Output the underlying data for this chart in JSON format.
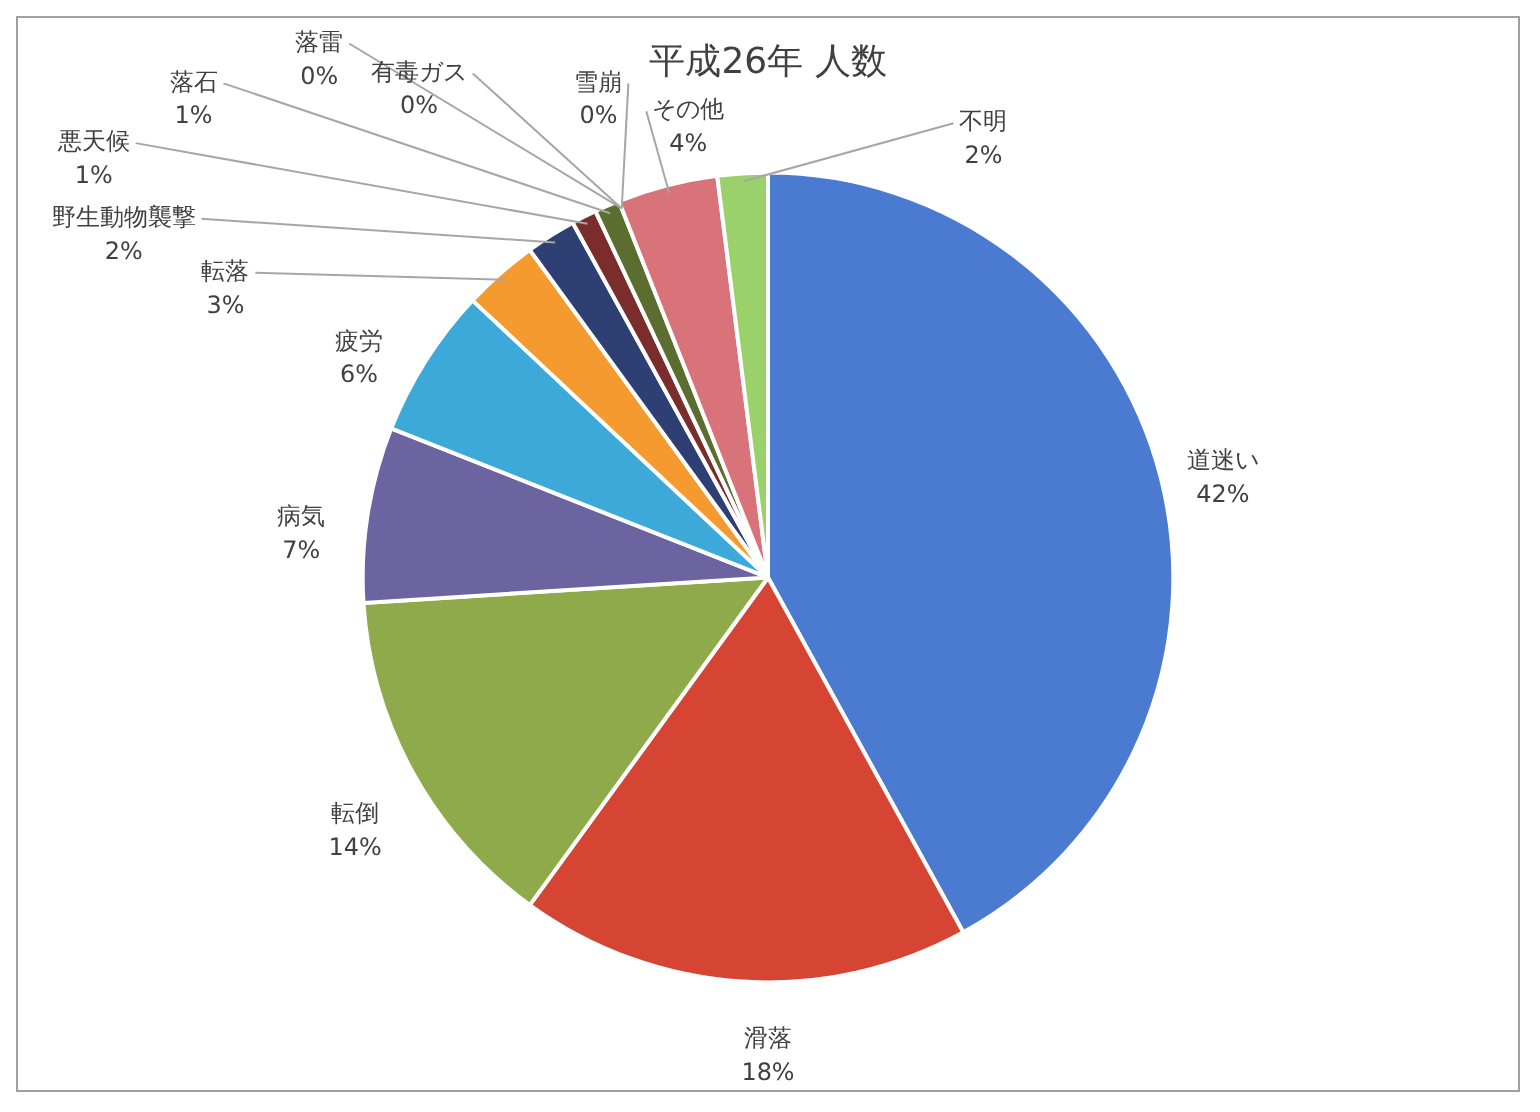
{
  "chart_data": {
    "type": "pie",
    "title": "平成26年 人数",
    "categories": [
      "道迷い",
      "滑落",
      "転倒",
      "病気",
      "疲労",
      "転落",
      "野生動物襲撃",
      "悪天候",
      "落石",
      "落雷",
      "有毒ガス",
      "雪崩",
      "その他",
      "不明"
    ],
    "values": [
      42,
      18,
      14,
      7,
      6,
      3,
      2,
      1,
      1,
      0,
      0,
      0,
      4,
      2
    ],
    "colors": [
      "#4a7bd0",
      "#d64533",
      "#8faa4b",
      "#6b64a0",
      "#3ca9d8",
      "#f59a2e",
      "#2e3f73",
      "#7a2d2a",
      "#5c6e2f",
      "#5a3b8b",
      "#2a7890",
      "#c0702a",
      "#d9737a",
      "#9bd16a"
    ],
    "value_labels": [
      "42%",
      "18%",
      "14%",
      "7%",
      "6%",
      "3%",
      "2%",
      "1%",
      "1%",
      "0%",
      "0%",
      "0%",
      "4%",
      "2%"
    ],
    "legend": false
  }
}
